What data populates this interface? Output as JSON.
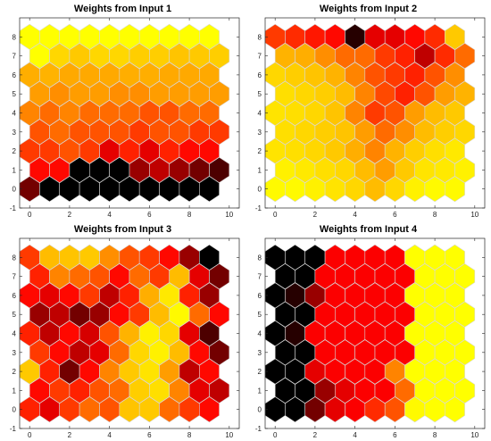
{
  "colormap": [
    "#000000",
    "#ff0000",
    "#ffa500",
    "#ffff00"
  ],
  "chart_data": [
    {
      "type": "heatmap",
      "title": "Weights from Input 1",
      "xlim": [
        -0.5,
        10.5
      ],
      "ylim": [
        -1,
        9
      ],
      "xticks": [
        "0",
        "2",
        "4",
        "6",
        "8",
        "10"
      ],
      "yticks": [
        "-1",
        "0",
        "1",
        "2",
        "3",
        "4",
        "5",
        "6",
        "7",
        "8"
      ],
      "grid": "hexagonal 10x9 SOM",
      "values": [
        [
          0.15,
          0.0,
          0.0,
          0.0,
          0.0,
          0.0,
          0.0,
          0.0,
          0.0,
          0.0
        ],
        [
          0.35,
          0.35,
          0.0,
          0.0,
          0.0,
          0.2,
          0.25,
          0.2,
          0.15,
          0.1
        ],
        [
          0.45,
          0.45,
          0.5,
          0.45,
          0.3,
          0.4,
          0.3,
          0.4,
          0.35,
          0.35
        ],
        [
          0.5,
          0.55,
          0.5,
          0.5,
          0.5,
          0.45,
          0.5,
          0.5,
          0.45,
          0.45
        ],
        [
          0.6,
          0.55,
          0.6,
          0.55,
          0.55,
          0.55,
          0.5,
          0.5,
          0.55,
          0.55
        ],
        [
          0.65,
          0.62,
          0.65,
          0.65,
          0.62,
          0.62,
          0.65,
          0.65,
          0.65,
          0.65
        ],
        [
          0.7,
          0.72,
          0.68,
          0.68,
          0.68,
          0.7,
          0.7,
          0.68,
          0.68,
          0.68
        ],
        [
          1.0,
          0.85,
          0.8,
          0.85,
          0.85,
          0.82,
          0.82,
          0.78,
          0.8,
          0.82
        ],
        [
          1.0,
          1.0,
          1.0,
          1.0,
          1.0,
          1.0,
          1.0,
          1.0,
          1.0,
          1.0
        ]
      ]
    },
    {
      "type": "heatmap",
      "title": "Weights from Input 2",
      "xlim": [
        -0.5,
        10.5
      ],
      "ylim": [
        -1,
        9
      ],
      "xticks": [
        "0",
        "2",
        "4",
        "6",
        "8",
        "10"
      ],
      "yticks": [
        "-1",
        "0",
        "1",
        "2",
        "3",
        "4",
        "5",
        "6",
        "7",
        "8"
      ],
      "grid": "hexagonal 10x9 SOM",
      "values": [
        [
          0.98,
          0.98,
          0.95,
          0.9,
          0.85,
          0.75,
          0.85,
          0.95,
          0.98,
          0.98
        ],
        [
          0.95,
          0.92,
          0.88,
          0.85,
          0.75,
          0.65,
          0.8,
          0.9,
          0.92,
          0.95
        ],
        [
          0.9,
          0.88,
          0.85,
          0.8,
          0.7,
          0.6,
          0.72,
          0.82,
          0.88,
          0.92
        ],
        [
          0.88,
          0.85,
          0.82,
          0.78,
          0.65,
          0.55,
          0.62,
          0.75,
          0.82,
          0.85
        ],
        [
          0.9,
          0.88,
          0.85,
          0.78,
          0.6,
          0.45,
          0.5,
          0.65,
          0.75,
          0.8
        ],
        [
          0.88,
          0.85,
          0.82,
          0.75,
          0.6,
          0.48,
          0.4,
          0.5,
          0.65,
          0.72
        ],
        [
          0.85,
          0.82,
          0.78,
          0.72,
          0.6,
          0.5,
          0.45,
          0.4,
          0.5,
          0.62
        ],
        [
          0.72,
          0.7,
          0.62,
          0.55,
          0.55,
          0.45,
          0.4,
          0.25,
          0.42,
          0.55
        ],
        [
          0.45,
          0.42,
          0.38,
          0.35,
          0.05,
          0.3,
          0.3,
          0.35,
          0.42,
          0.8
        ]
      ]
    },
    {
      "type": "heatmap",
      "title": "Weights from Input 3",
      "xlim": [
        -0.5,
        10.5
      ],
      "ylim": [
        -1,
        9
      ],
      "xticks": [
        "0",
        "2",
        "4",
        "6",
        "8",
        "10"
      ],
      "yticks": [
        "-1",
        "0",
        "1",
        "2",
        "3",
        "4",
        "5",
        "6",
        "7",
        "8"
      ],
      "grid": "hexagonal 10x9 SOM",
      "values": [
        [
          0.4,
          0.3,
          0.45,
          0.55,
          0.5,
          0.78,
          0.8,
          0.55,
          0.45,
          0.35
        ],
        [
          0.35,
          0.45,
          0.4,
          0.5,
          0.55,
          0.82,
          0.88,
          0.6,
          0.3,
          0.25
        ],
        [
          0.8,
          0.4,
          0.15,
          0.35,
          0.6,
          0.8,
          0.9,
          0.65,
          0.25,
          0.35
        ],
        [
          0.45,
          0.35,
          0.25,
          0.3,
          0.55,
          0.85,
          0.95,
          0.75,
          0.35,
          0.15
        ],
        [
          0.4,
          0.25,
          0.35,
          0.28,
          0.5,
          0.72,
          0.95,
          0.85,
          0.3,
          0.1
        ],
        [
          0.2,
          0.25,
          0.15,
          0.2,
          0.35,
          0.45,
          0.75,
          0.98,
          0.55,
          0.35
        ],
        [
          0.35,
          0.3,
          0.35,
          0.45,
          0.25,
          0.4,
          0.7,
          0.92,
          0.4,
          0.2
        ],
        [
          0.4,
          0.6,
          0.55,
          0.5,
          0.35,
          0.55,
          0.45,
          0.75,
          0.3,
          0.15
        ],
        [
          0.45,
          0.75,
          0.78,
          0.8,
          0.62,
          0.5,
          0.45,
          0.35,
          0.2,
          0.0
        ]
      ]
    },
    {
      "type": "heatmap",
      "title": "Weights from Input 4",
      "xlim": [
        -0.5,
        10.5
      ],
      "ylim": [
        -1,
        9
      ],
      "xticks": [
        "0",
        "2",
        "4",
        "6",
        "8",
        "10"
      ],
      "yticks": [
        "-1",
        "0",
        "1",
        "2",
        "3",
        "4",
        "5",
        "6",
        "7",
        "8"
      ],
      "grid": "hexagonal 10x9 SOM",
      "values": [
        [
          0.0,
          0.0,
          0.15,
          0.3,
          0.33,
          0.42,
          0.5,
          0.98,
          1.0,
          1.0
        ],
        [
          0.0,
          0.0,
          0.2,
          0.3,
          0.33,
          0.33,
          0.55,
          1.0,
          1.0,
          1.0
        ],
        [
          0.0,
          0.0,
          0.3,
          0.33,
          0.33,
          0.33,
          0.6,
          1.0,
          1.0,
          1.0
        ],
        [
          0.0,
          0.0,
          0.33,
          0.33,
          0.33,
          0.33,
          0.33,
          1.0,
          1.0,
          1.0
        ],
        [
          0.0,
          0.05,
          0.33,
          0.33,
          0.33,
          0.33,
          0.33,
          1.0,
          1.0,
          1.0
        ],
        [
          0.0,
          0.0,
          0.33,
          0.33,
          0.33,
          0.33,
          0.33,
          1.0,
          1.0,
          1.0
        ],
        [
          0.0,
          0.05,
          0.2,
          0.33,
          0.33,
          0.33,
          0.33,
          1.0,
          1.0,
          1.0
        ],
        [
          0.0,
          0.0,
          0.33,
          0.33,
          0.33,
          0.33,
          0.33,
          1.0,
          1.0,
          1.0
        ],
        [
          0.0,
          0.0,
          0.0,
          0.33,
          0.33,
          0.33,
          0.33,
          1.0,
          1.0,
          1.0
        ]
      ]
    }
  ]
}
